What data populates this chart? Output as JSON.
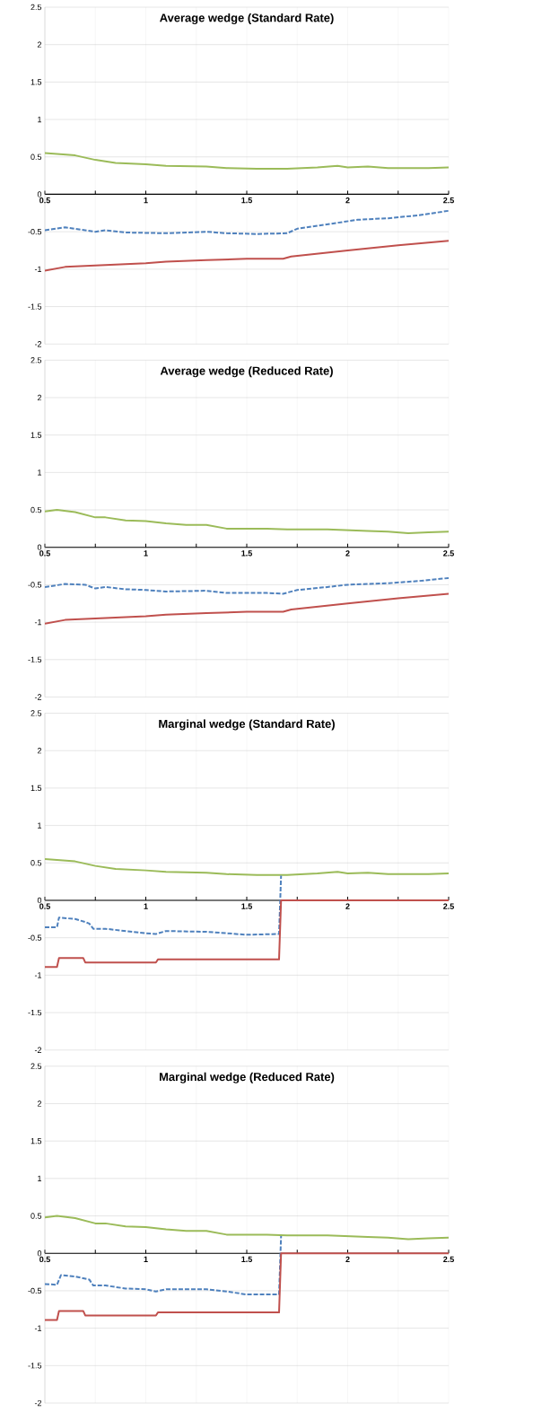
{
  "chart_data": [
    {
      "type": "line",
      "title": "Average wedge (Standard Rate)",
      "xlim": [
        0.5,
        2.5
      ],
      "ylim": [
        -2,
        2.5
      ],
      "grid": true,
      "marker": "none",
      "xticks": [
        0.5,
        {
          "value": 0.75,
          "label": null
        },
        1,
        {
          "value": 1.25,
          "label": null
        },
        1.5,
        {
          "value": 1.75,
          "label": null
        },
        2,
        {
          "value": 2.25,
          "label": null
        },
        2.5
      ],
      "yticks": [
        -2,
        -1.5,
        -1,
        -0.5,
        0,
        0.5,
        1,
        1.5,
        2,
        2.5
      ],
      "series": [
        {
          "color": "#9bbb59",
          "line_style": "solid",
          "x": [
            0.5,
            0.65,
            0.75,
            0.85,
            1.0,
            1.1,
            1.3,
            1.4,
            1.55,
            1.7,
            1.85,
            1.95,
            2.0,
            2.1,
            2.2,
            2.4,
            2.5
          ],
          "values": [
            0.55,
            0.52,
            0.46,
            0.42,
            0.4,
            0.38,
            0.37,
            0.35,
            0.34,
            0.34,
            0.36,
            0.38,
            0.36,
            0.37,
            0.35,
            0.35,
            0.36
          ]
        },
        {
          "color": "#4f81bd",
          "line_style": "dashed",
          "x": [
            0.5,
            0.6,
            0.75,
            0.8,
            0.9,
            1.1,
            1.3,
            1.4,
            1.55,
            1.7,
            1.75,
            1.85,
            1.95,
            2.05,
            2.2,
            2.35,
            2.45,
            2.5
          ],
          "values": [
            -0.48,
            -0.44,
            -0.5,
            -0.48,
            -0.51,
            -0.52,
            -0.5,
            -0.52,
            -0.53,
            -0.52,
            -0.46,
            -0.42,
            -0.38,
            -0.34,
            -0.32,
            -0.28,
            -0.24,
            -0.22
          ]
        },
        {
          "color": "#c0504d",
          "line_style": "solid",
          "x": [
            0.5,
            0.6,
            0.75,
            1.0,
            1.1,
            1.3,
            1.5,
            1.68,
            1.72,
            2.0,
            2.25,
            2.5
          ],
          "values": [
            -1.02,
            -0.97,
            -0.95,
            -0.92,
            -0.9,
            -0.88,
            -0.86,
            -0.86,
            -0.83,
            -0.75,
            -0.68,
            -0.62
          ]
        }
      ]
    },
    {
      "type": "line",
      "title": "Average wedge (Reduced Rate)",
      "xlim": [
        0.5,
        2.5
      ],
      "ylim": [
        -2,
        2.5
      ],
      "grid": true,
      "marker": "none",
      "xticks": [
        0.5,
        {
          "value": 0.75,
          "label": null
        },
        1,
        {
          "value": 1.25,
          "label": null
        },
        1.5,
        {
          "value": 1.75,
          "label": null
        },
        2,
        {
          "value": 2.25,
          "label": null
        },
        2.5
      ],
      "yticks": [
        -2,
        -1.5,
        -1,
        -0.5,
        0,
        0.5,
        1,
        1.5,
        2,
        2.5
      ],
      "series": [
        {
          "color": "#9bbb59",
          "line_style": "solid",
          "x": [
            0.5,
            0.56,
            0.65,
            0.75,
            0.8,
            0.9,
            1.0,
            1.1,
            1.2,
            1.3,
            1.4,
            1.6,
            1.7,
            1.9,
            2.1,
            2.2,
            2.3,
            2.4,
            2.5
          ],
          "values": [
            0.48,
            0.5,
            0.47,
            0.4,
            0.4,
            0.36,
            0.35,
            0.32,
            0.3,
            0.3,
            0.25,
            0.25,
            0.24,
            0.24,
            0.22,
            0.21,
            0.19,
            0.2,
            0.21
          ]
        },
        {
          "color": "#4f81bd",
          "line_style": "dashed",
          "x": [
            0.5,
            0.6,
            0.7,
            0.75,
            0.8,
            0.9,
            1.0,
            1.1,
            1.3,
            1.4,
            1.6,
            1.68,
            1.75,
            1.9,
            2.0,
            2.2,
            2.35,
            2.5
          ],
          "values": [
            -0.53,
            -0.49,
            -0.5,
            -0.55,
            -0.53,
            -0.56,
            -0.57,
            -0.59,
            -0.58,
            -0.61,
            -0.61,
            -0.62,
            -0.57,
            -0.53,
            -0.5,
            -0.48,
            -0.45,
            -0.41
          ]
        },
        {
          "color": "#c0504d",
          "line_style": "solid",
          "x": [
            0.5,
            0.6,
            0.75,
            1.0,
            1.1,
            1.3,
            1.5,
            1.68,
            1.72,
            2.0,
            2.25,
            2.5
          ],
          "values": [
            -1.02,
            -0.97,
            -0.95,
            -0.92,
            -0.9,
            -0.88,
            -0.86,
            -0.86,
            -0.83,
            -0.75,
            -0.68,
            -0.62
          ]
        }
      ]
    },
    {
      "type": "line",
      "title": "Marginal wedge (Standard Rate)",
      "xlim": [
        0.5,
        2.5
      ],
      "ylim": [
        -2,
        2.5
      ],
      "grid": true,
      "marker": "none",
      "xticks": [
        0.5,
        {
          "value": 0.75,
          "label": null
        },
        1,
        {
          "value": 1.25,
          "label": null
        },
        1.5,
        {
          "value": 1.75,
          "label": null
        },
        2,
        {
          "value": 2.25,
          "label": null
        },
        2.5
      ],
      "yticks": [
        -2,
        -1.5,
        -1,
        -0.5,
        0,
        0.5,
        1,
        1.5,
        2,
        2.5
      ],
      "series": [
        {
          "color": "#9bbb59",
          "line_style": "solid",
          "x": [
            0.5,
            0.65,
            0.75,
            0.85,
            1.0,
            1.1,
            1.3,
            1.4,
            1.55,
            1.7,
            1.85,
            1.95,
            2.0,
            2.1,
            2.2,
            2.4,
            2.5
          ],
          "values": [
            0.55,
            0.52,
            0.46,
            0.42,
            0.4,
            0.38,
            0.37,
            0.35,
            0.34,
            0.34,
            0.36,
            0.38,
            0.36,
            0.37,
            0.35,
            0.35,
            0.36
          ]
        },
        {
          "color": "#4f81bd",
          "line_style": "dashed",
          "x": [
            0.5,
            0.56,
            0.57,
            0.65,
            0.7,
            0.72,
            0.74,
            0.8,
            0.9,
            1.0,
            1.05,
            1.1,
            1.3,
            1.4,
            1.5,
            1.66,
            1.67
          ],
          "values": [
            -0.36,
            -0.36,
            -0.23,
            -0.25,
            -0.29,
            -0.31,
            -0.38,
            -0.38,
            -0.41,
            -0.44,
            -0.45,
            -0.41,
            -0.42,
            -0.44,
            -0.46,
            -0.45,
            0.33
          ]
        },
        {
          "color": "#c0504d",
          "line_style": "solid",
          "x": [
            0.5,
            0.56,
            0.57,
            0.69,
            0.7,
            1.05,
            1.06,
            1.66,
            1.67,
            2.5
          ],
          "values": [
            -0.89,
            -0.89,
            -0.77,
            -0.77,
            -0.83,
            -0.83,
            -0.79,
            -0.79,
            0,
            0
          ]
        }
      ]
    },
    {
      "type": "line",
      "title": "Marginal wedge (Reduced Rate)",
      "xlim": [
        0.5,
        2.5
      ],
      "ylim": [
        -2,
        2.5
      ],
      "grid": true,
      "marker": "none",
      "xticks": [
        0.5,
        {
          "value": 0.75,
          "label": null
        },
        1,
        {
          "value": 1.25,
          "label": null
        },
        1.5,
        {
          "value": 1.75,
          "label": null
        },
        2,
        {
          "value": 2.25,
          "label": null
        },
        2.5
      ],
      "yticks": [
        -2,
        -1.5,
        -1,
        -0.5,
        0,
        0.5,
        1,
        1.5,
        2,
        2.5
      ],
      "series": [
        {
          "color": "#9bbb59",
          "line_style": "solid",
          "x": [
            0.5,
            0.56,
            0.65,
            0.75,
            0.8,
            0.9,
            1.0,
            1.1,
            1.2,
            1.3,
            1.4,
            1.6,
            1.7,
            1.9,
            2.1,
            2.2,
            2.3,
            2.4,
            2.5
          ],
          "values": [
            0.48,
            0.5,
            0.47,
            0.4,
            0.4,
            0.36,
            0.35,
            0.32,
            0.3,
            0.3,
            0.25,
            0.25,
            0.24,
            0.24,
            0.22,
            0.21,
            0.19,
            0.2,
            0.21
          ]
        },
        {
          "color": "#4f81bd",
          "line_style": "dashed",
          "x": [
            0.5,
            0.56,
            0.58,
            0.65,
            0.72,
            0.74,
            0.8,
            0.9,
            1.0,
            1.05,
            1.1,
            1.3,
            1.4,
            1.5,
            1.66,
            1.67
          ],
          "values": [
            -0.41,
            -0.42,
            -0.29,
            -0.31,
            -0.35,
            -0.43,
            -0.43,
            -0.47,
            -0.48,
            -0.51,
            -0.48,
            -0.48,
            -0.51,
            -0.55,
            -0.55,
            0.23
          ]
        },
        {
          "color": "#c0504d",
          "line_style": "solid",
          "x": [
            0.5,
            0.56,
            0.57,
            0.69,
            0.7,
            1.05,
            1.06,
            1.66,
            1.67,
            2.5
          ],
          "values": [
            -0.89,
            -0.89,
            -0.77,
            -0.77,
            -0.83,
            -0.83,
            -0.79,
            -0.79,
            0,
            0
          ]
        }
      ]
    }
  ]
}
